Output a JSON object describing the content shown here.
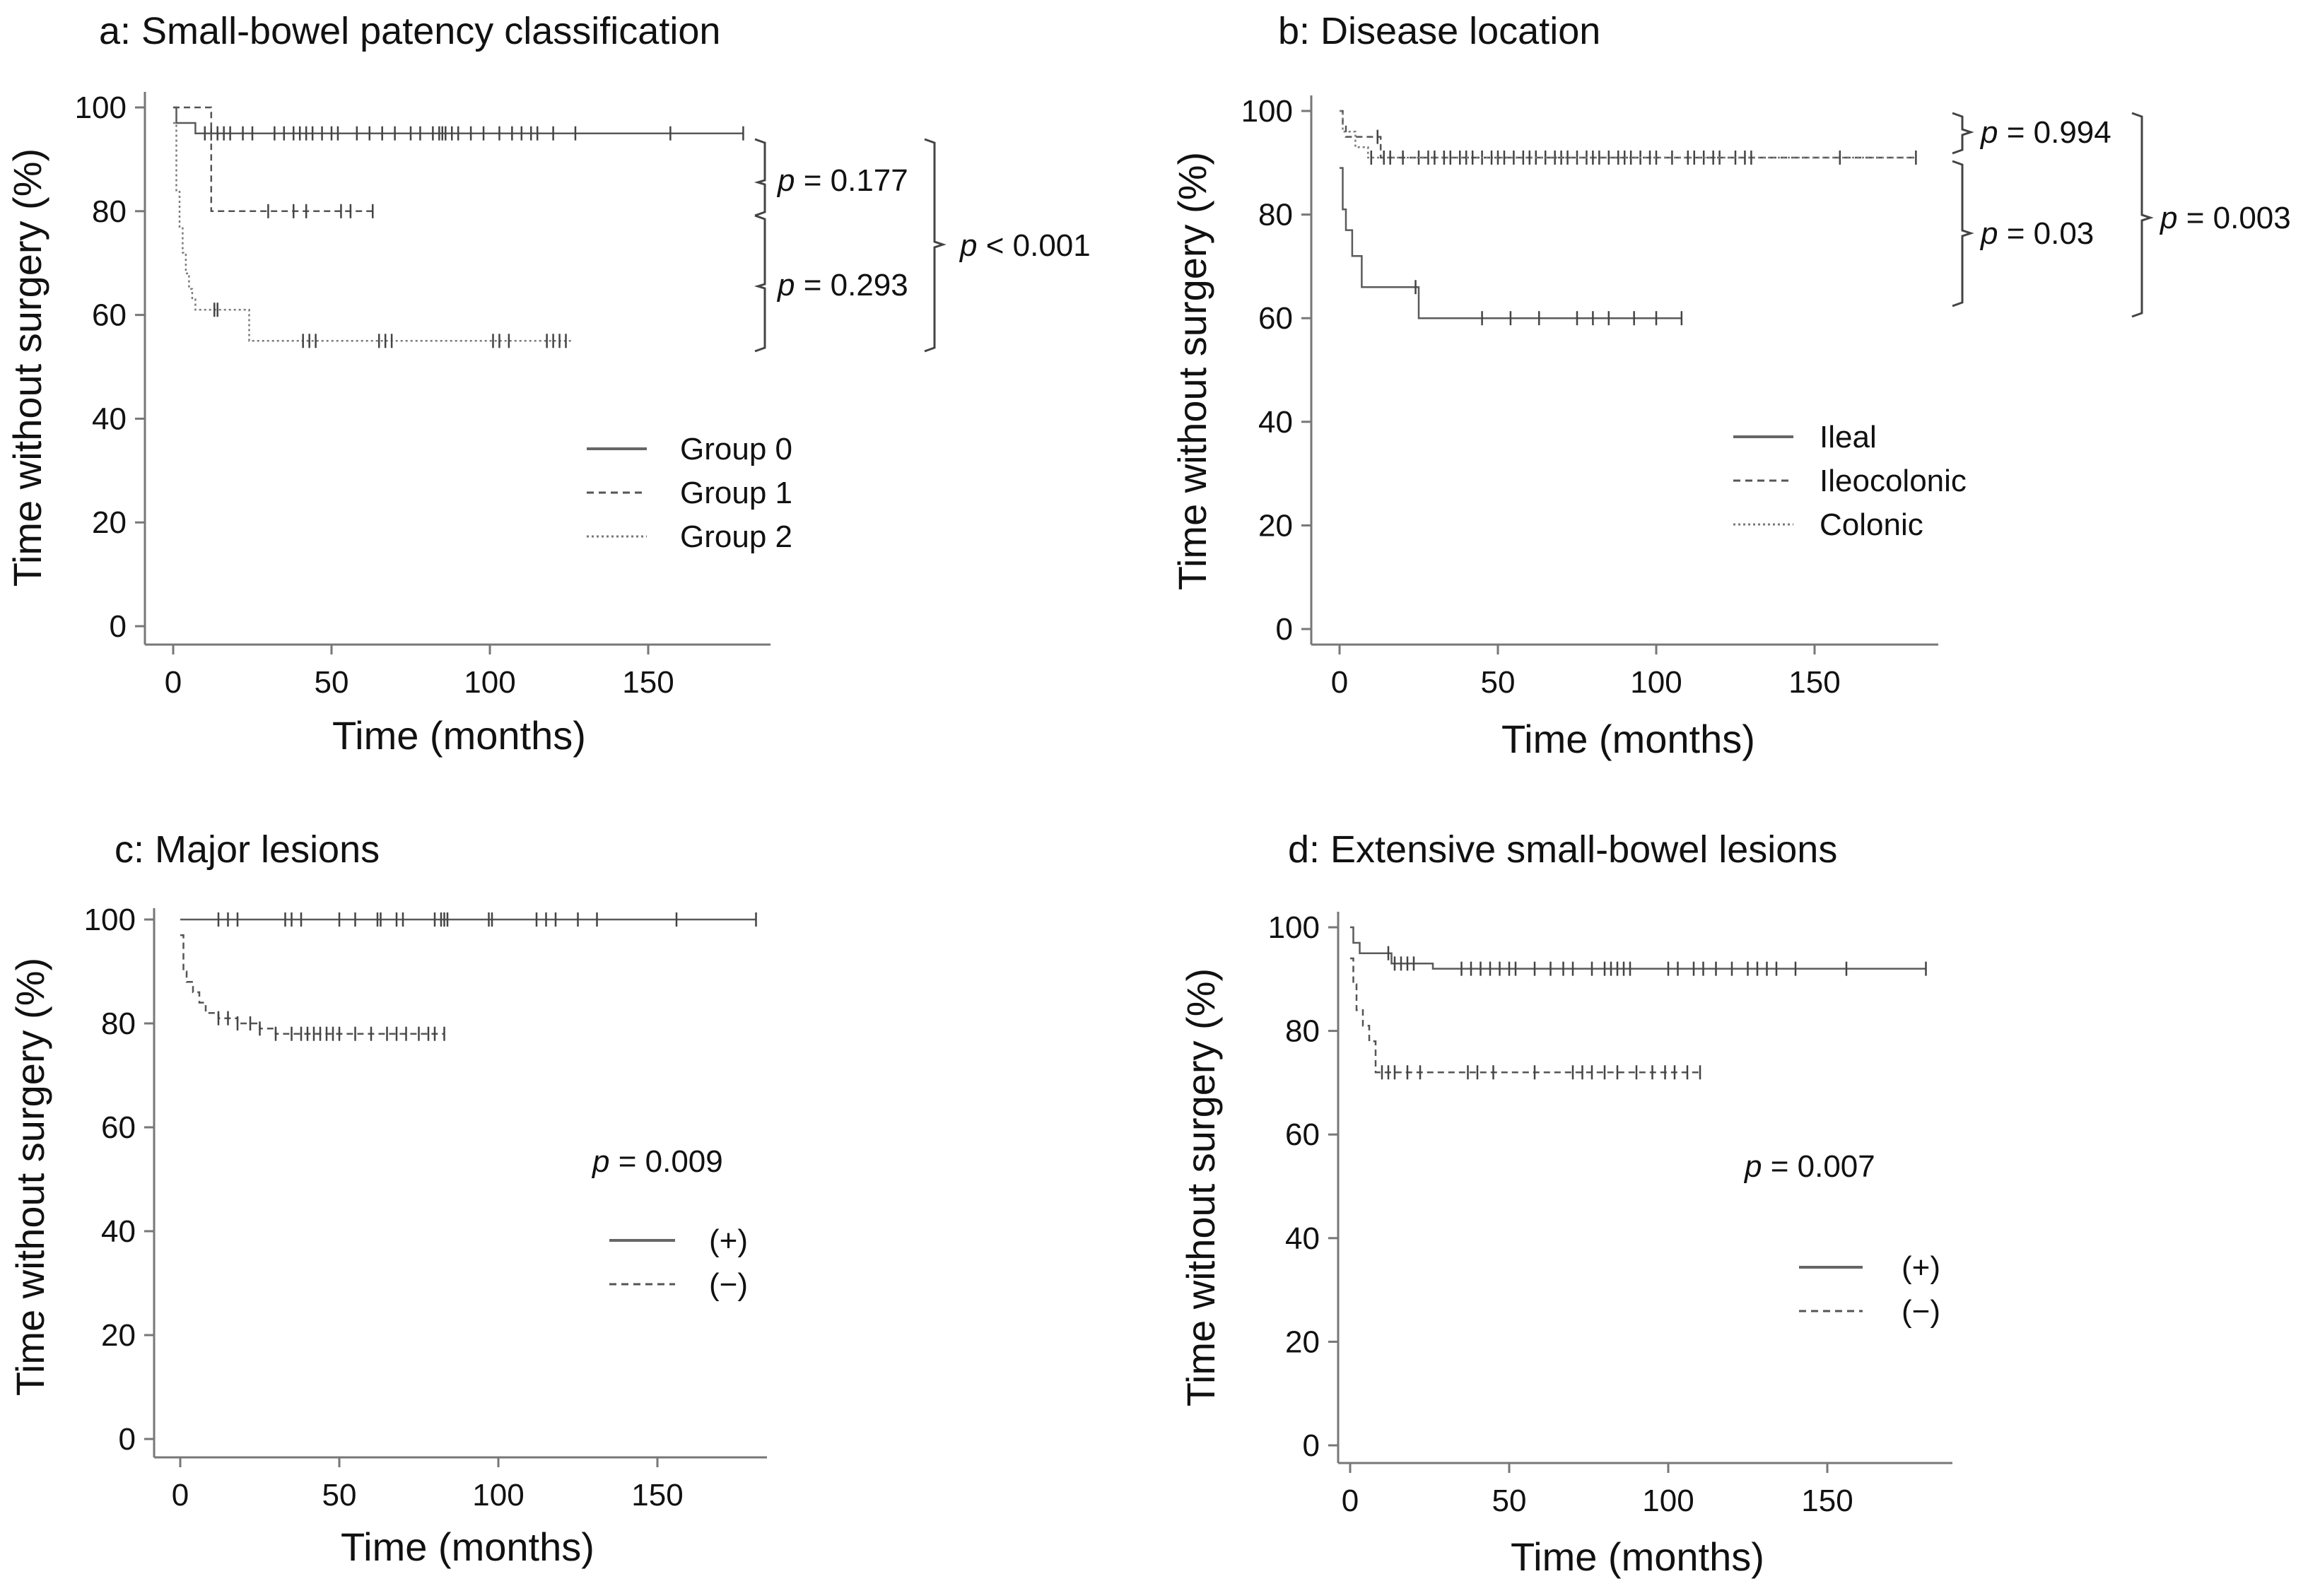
{
  "chart_data": [
    {
      "id": "a",
      "type": "line",
      "subtype": "kaplan-meier",
      "title": "a: Small-bowel patency classification",
      "xlabel": "Time (months)",
      "ylabel": "Time without surgery (%)",
      "xlim": [
        0,
        180
      ],
      "ylim": [
        0,
        100
      ],
      "xticks": [
        0,
        50,
        100,
        150
      ],
      "yticks": [
        0,
        20,
        40,
        60,
        80,
        100
      ],
      "tick_labels_x": [
        "0",
        "50",
        "100",
        "150"
      ],
      "tick_labels_y": [
        "0",
        "20",
        "40",
        "60",
        "80",
        "100"
      ],
      "series": [
        {
          "name": "Group 0",
          "style": "solid",
          "steps": [
            [
              0,
              100
            ],
            [
              1,
              97
            ],
            [
              7,
              95
            ],
            [
              180,
              95
            ]
          ],
          "censored": [
            10,
            12,
            14,
            16,
            18,
            22,
            25,
            32,
            35,
            38,
            40,
            42,
            44,
            47,
            50,
            52,
            58,
            62,
            66,
            70,
            75,
            78,
            82,
            84,
            85,
            86,
            88,
            90,
            94,
            98,
            103,
            107,
            110,
            113,
            115,
            120,
            127,
            157,
            180
          ]
        },
        {
          "name": "Group 1",
          "style": "dashed",
          "steps": [
            [
              0,
              100
            ],
            [
              12,
              100
            ],
            [
              12,
              80
            ],
            [
              64,
              80
            ]
          ],
          "censored": [
            30,
            38,
            42,
            53,
            56,
            63
          ]
        },
        {
          "name": "Group 2",
          "style": "dotted",
          "steps": [
            [
              0,
              97
            ],
            [
              1,
              84
            ],
            [
              2,
              77
            ],
            [
              3,
              72
            ],
            [
              4,
              68
            ],
            [
              5,
              65
            ],
            [
              6,
              63
            ],
            [
              7,
              61
            ],
            [
              23,
              61
            ],
            [
              24,
              55
            ],
            [
              126,
              55
            ]
          ],
          "censored": [
            13,
            14,
            41,
            43,
            45,
            65,
            67,
            69,
            101,
            103,
            106,
            118,
            120,
            122,
            124
          ]
        }
      ],
      "legend": {
        "position": "center-right",
        "entries": [
          {
            "label": "Group 0",
            "style": "solid"
          },
          {
            "label": "Group 1",
            "style": "dashed"
          },
          {
            "label": "Group 2",
            "style": "dotted"
          }
        ]
      },
      "annotations": [
        {
          "text": "p = 0.177",
          "italic": "p",
          "rest": " = 0.177",
          "compares": [
            "Group 0",
            "Group 1"
          ]
        },
        {
          "text": "p = 0.293",
          "italic": "p",
          "rest": " = 0.293",
          "compares": [
            "Group 1",
            "Group 2"
          ]
        },
        {
          "text": "p < 0.001",
          "italic": "p",
          "rest": " < 0.001",
          "compares": [
            "Group 0",
            "Group 2"
          ]
        }
      ]
    },
    {
      "id": "b",
      "type": "line",
      "subtype": "kaplan-meier",
      "title": "b: Disease location",
      "xlabel": "Time (months)",
      "ylabel": "Time without surgery (%)",
      "xlim": [
        0,
        180
      ],
      "ylim": [
        0,
        100
      ],
      "xticks": [
        0,
        50,
        100,
        150
      ],
      "yticks": [
        0,
        20,
        40,
        60,
        80,
        100
      ],
      "tick_labels_x": [
        "0",
        "50",
        "100",
        "150"
      ],
      "tick_labels_y": [
        "0",
        "20",
        "40",
        "60",
        "80",
        "100"
      ],
      "series": [
        {
          "name": "Ileal",
          "style": "solid",
          "steps": [
            [
              0,
              89
            ],
            [
              1,
              81
            ],
            [
              2,
              77
            ],
            [
              4,
              72
            ],
            [
              7,
              66
            ],
            [
              24,
              66
            ],
            [
              25,
              60
            ],
            [
              108,
              60
            ]
          ],
          "censored": [
            24,
            45,
            54,
            63,
            75,
            80,
            85,
            93,
            100,
            108
          ]
        },
        {
          "name": "Ileocolonic",
          "style": "dashed",
          "steps": [
            [
              0,
              100
            ],
            [
              1,
              97
            ],
            [
              2,
              95
            ],
            [
              12,
              95
            ],
            [
              13,
              91
            ],
            [
              182,
              91
            ]
          ],
          "censored": [
            12,
            16,
            25,
            30,
            35,
            40,
            45,
            50,
            52,
            55,
            60,
            62,
            65,
            70,
            75,
            78,
            80,
            85,
            90,
            95,
            100,
            105,
            110,
            115,
            120,
            125,
            130
          ]
        },
        {
          "name": "Colonic",
          "style": "dotted",
          "steps": [
            [
              0,
              100
            ],
            [
              1,
              96
            ],
            [
              5,
              93
            ],
            [
              9,
              91
            ],
            [
              182,
              91
            ]
          ],
          "censored": [
            10,
            14,
            20,
            28,
            33,
            38,
            42,
            48,
            58,
            68,
            72,
            82,
            88,
            92,
            98,
            112,
            118,
            128,
            158,
            182
          ]
        }
      ],
      "legend": {
        "position": "center-right",
        "entries": [
          {
            "label": "Ileal",
            "style": "solid"
          },
          {
            "label": "Ileocolonic",
            "style": "dashed"
          },
          {
            "label": "Colonic",
            "style": "dotted"
          }
        ]
      },
      "annotations": [
        {
          "text": "p = 0.994",
          "italic": "p",
          "rest": " = 0.994",
          "compares": [
            "Ileocolonic",
            "Colonic"
          ]
        },
        {
          "text": "p = 0.03",
          "italic": "p",
          "rest": " = 0.03",
          "compares": [
            "Ileocolonic",
            "Ileal"
          ]
        },
        {
          "text": "p = 0.003",
          "italic": "p",
          "rest": " = 0.003",
          "compares": [
            "Colonic",
            "Ileal"
          ]
        }
      ]
    },
    {
      "id": "c",
      "type": "line",
      "subtype": "kaplan-meier",
      "title": "c: Major lesions",
      "xlabel": "Time (months)",
      "ylabel": "Time without surgery (%)",
      "xlim": [
        0,
        180
      ],
      "ylim": [
        0,
        100
      ],
      "xticks": [
        0,
        50,
        100,
        150
      ],
      "yticks": [
        0,
        20,
        40,
        60,
        80,
        100
      ],
      "tick_labels_x": [
        "0",
        "50",
        "100",
        "150"
      ],
      "tick_labels_y": [
        "0",
        "20",
        "40",
        "60",
        "80",
        "100"
      ],
      "series": [
        {
          "name": "(+)",
          "style": "solid",
          "steps": [
            [
              0,
              100
            ],
            [
              181,
              100
            ]
          ],
          "censored": [
            12,
            15,
            18,
            33,
            35,
            38,
            50,
            55,
            62,
            63,
            68,
            70,
            80,
            82,
            83,
            84,
            97,
            98,
            112,
            115,
            118,
            125,
            131,
            156,
            181
          ]
        },
        {
          "name": "(−)",
          "style": "dashed",
          "steps": [
            [
              0,
              97
            ],
            [
              1,
              90
            ],
            [
              2,
              88
            ],
            [
              4,
              86
            ],
            [
              6,
              84
            ],
            [
              8,
              82
            ],
            [
              12,
              81
            ],
            [
              18,
              80
            ],
            [
              25,
              79
            ],
            [
              30,
              78
            ],
            [
              83,
              78
            ]
          ],
          "censored": [
            12,
            15,
            18,
            22,
            25,
            30,
            35,
            38,
            40,
            42,
            44,
            46,
            48,
            50,
            55,
            60,
            65,
            68,
            71,
            75,
            78,
            80,
            83
          ]
        }
      ],
      "legend": {
        "position": "center-right",
        "entries": [
          {
            "label": "(+)",
            "style": "solid"
          },
          {
            "label": "(−)",
            "style": "dashed"
          }
        ]
      },
      "annotations": [
        {
          "text": "p = 0.009",
          "italic": "p",
          "rest": " = 0.009"
        }
      ]
    },
    {
      "id": "d",
      "type": "line",
      "subtype": "kaplan-meier",
      "title": "d: Extensive small-bowel lesions",
      "xlabel": "Time (months)",
      "ylabel": "Time without surgery (%)",
      "xlim": [
        0,
        180
      ],
      "ylim": [
        0,
        100
      ],
      "xticks": [
        0,
        50,
        100,
        150
      ],
      "yticks": [
        0,
        20,
        40,
        60,
        80,
        100
      ],
      "tick_labels_x": [
        "0",
        "50",
        "100",
        "150"
      ],
      "tick_labels_y": [
        "0",
        "20",
        "40",
        "60",
        "80",
        "100"
      ],
      "series": [
        {
          "name": "(+)",
          "style": "solid",
          "steps": [
            [
              0,
              100
            ],
            [
              1,
              97
            ],
            [
              3,
              95
            ],
            [
              12,
              95
            ],
            [
              13,
              93
            ],
            [
              25,
              93
            ],
            [
              26,
              92
            ],
            [
              181,
              92
            ]
          ],
          "censored": [
            12,
            14,
            16,
            18,
            20,
            35,
            38,
            41,
            44,
            47,
            50,
            52,
            58,
            63,
            67,
            70,
            76,
            80,
            82,
            84,
            86,
            88,
            100,
            103,
            108,
            111,
            115,
            120,
            125,
            128,
            131,
            134,
            140,
            156,
            181
          ]
        },
        {
          "name": "(−)",
          "style": "dashed",
          "steps": [
            [
              0,
              94
            ],
            [
              1,
              89
            ],
            [
              2,
              84
            ],
            [
              4,
              81
            ],
            [
              6,
              78
            ],
            [
              8,
              72
            ],
            [
              110,
              72
            ]
          ],
          "censored": [
            10,
            12,
            14,
            18,
            22,
            37,
            40,
            45,
            58,
            70,
            73,
            76,
            80,
            84,
            90,
            95,
            99,
            102,
            106,
            110
          ]
        }
      ],
      "legend": {
        "position": "center-right",
        "entries": [
          {
            "label": "(+)",
            "style": "solid"
          },
          {
            "label": "(−)",
            "style": "dashed"
          }
        ]
      },
      "annotations": [
        {
          "text": "p = 0.007",
          "italic": "p",
          "rest": " = 0.007"
        }
      ]
    }
  ]
}
